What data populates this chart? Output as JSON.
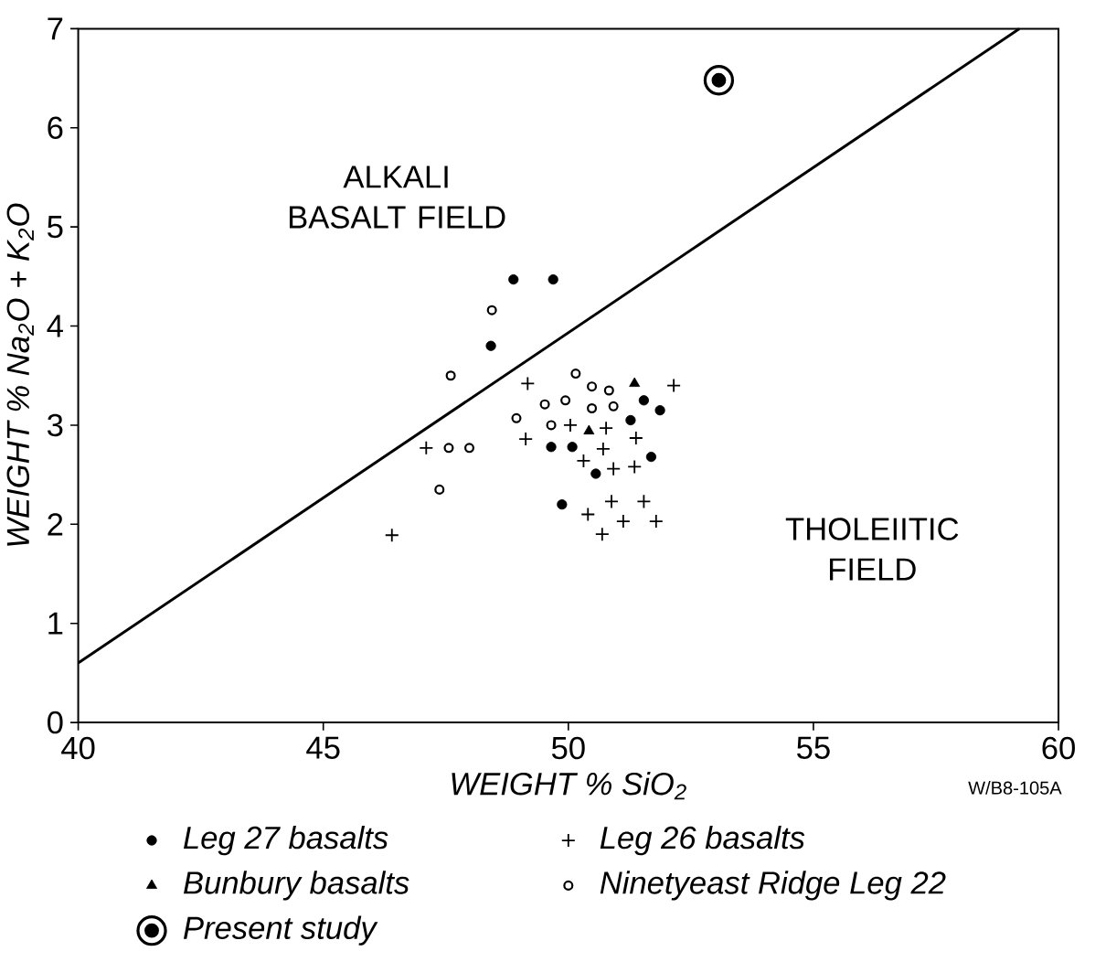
{
  "chart_data": {
    "type": "scatter",
    "xlabel": "WEIGHT % SiO$_{2}$",
    "ylabel": "WEIGHT % Na$_{2}$O + K$_{2}$O",
    "xlim": [
      40,
      60
    ],
    "ylim": [
      0,
      7
    ],
    "xticks": [
      40,
      45,
      50,
      55,
      60
    ],
    "yticks": [
      0,
      1,
      2,
      3,
      4,
      5,
      6,
      7
    ],
    "grid": false,
    "legend": "bottom",
    "series": [
      {
        "name": "Leg 27 basalts",
        "color": "#000000",
        "marker": "circle",
        "x": [
          48.88,
          49.69,
          48.42,
          49.65,
          50.08,
          50.56,
          49.87,
          51.27,
          51.54,
          51.87,
          51.69
        ],
        "values": [
          4.47,
          4.47,
          3.8,
          2.78,
          2.78,
          2.51,
          2.2,
          3.05,
          3.25,
          3.15,
          2.68
        ]
      },
      {
        "name": "Leg 26 basalts",
        "color": "#000000",
        "marker": "cross",
        "x": [
          49.17,
          52.15,
          49.13,
          50.04,
          50.77,
          51.38,
          50.31,
          50.71,
          50.92,
          51.35,
          47.1,
          46.4,
          50.88,
          51.54,
          50.4,
          51.12,
          51.79,
          50.69
        ],
        "values": [
          3.42,
          3.4,
          2.86,
          3.0,
          2.97,
          2.87,
          2.64,
          2.76,
          2.56,
          2.58,
          2.77,
          1.89,
          2.23,
          2.23,
          2.1,
          2.03,
          2.03,
          1.9
        ]
      },
      {
        "name": "Bunbury basalts",
        "color": "#000000",
        "marker": "triangle",
        "x": [
          51.35,
          50.42
        ],
        "values": [
          3.42,
          2.94
        ]
      },
      {
        "name": "Ninetyeast Ridge Leg 22",
        "color": "#000000",
        "marker": "open circle",
        "x": [
          48.44,
          47.6,
          47.56,
          47.98,
          47.37,
          48.94,
          49.52,
          49.94,
          50.15,
          50.48,
          50.83,
          50.48,
          50.92,
          49.65
        ],
        "values": [
          4.16,
          3.5,
          2.77,
          2.77,
          2.35,
          3.07,
          3.21,
          3.25,
          3.52,
          3.39,
          3.35,
          3.17,
          3.19,
          3.0
        ]
      },
      {
        "name": "Present study",
        "color": "#000000",
        "x": [
          53.07
        ],
        "values": [
          6.48
        ]
      },
      {
        "type": "line",
        "color": "#000000",
        "x": [
          40,
          59.2
        ],
        "values": [
          0.6,
          7
        ]
      }
    ],
    "annotations": [
      {
        "text": "ALKALI   BASALT FIELD"
      },
      {
        "text": "THOLEIITIC FIELD"
      },
      "W/B8-105A"
    ]
  }
}
